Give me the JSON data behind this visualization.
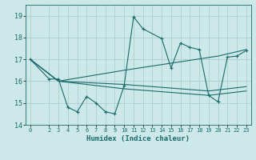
{
  "title": "",
  "xlabel": "Humidex (Indice chaleur)",
  "ylabel": "",
  "bg_color": "#cce8e8",
  "grid_color": "#aad0d0",
  "line_color": "#1a6b6b",
  "xlim": [
    -0.5,
    23.5
  ],
  "ylim": [
    14,
    19.5
  ],
  "yticks": [
    14,
    15,
    16,
    17,
    18,
    19
  ],
  "xticks": [
    0,
    2,
    3,
    4,
    5,
    6,
    7,
    8,
    9,
    10,
    11,
    12,
    13,
    14,
    15,
    16,
    17,
    18,
    19,
    20,
    21,
    22,
    23
  ],
  "series": [
    {
      "x": [
        0,
        2,
        3,
        4,
        5,
        6,
        7,
        8,
        9,
        10,
        11,
        12,
        14,
        15,
        16,
        17,
        18,
        19,
        20,
        21,
        22,
        23
      ],
      "y": [
        17.0,
        16.1,
        16.1,
        14.8,
        14.6,
        15.3,
        15.0,
        14.6,
        14.5,
        15.8,
        18.95,
        18.4,
        17.95,
        16.6,
        17.75,
        17.55,
        17.45,
        15.35,
        15.05,
        17.1,
        17.15,
        17.4
      ],
      "marker": true
    },
    {
      "x": [
        0,
        3,
        10,
        20,
        23
      ],
      "y": [
        17.0,
        16.0,
        16.5,
        17.15,
        17.45
      ],
      "marker": false
    },
    {
      "x": [
        0,
        3,
        10,
        19,
        23
      ],
      "y": [
        17.0,
        16.0,
        15.85,
        15.55,
        15.75
      ],
      "marker": false
    },
    {
      "x": [
        0,
        3,
        10,
        19,
        23
      ],
      "y": [
        17.0,
        16.0,
        15.65,
        15.35,
        15.55
      ],
      "marker": false
    }
  ]
}
